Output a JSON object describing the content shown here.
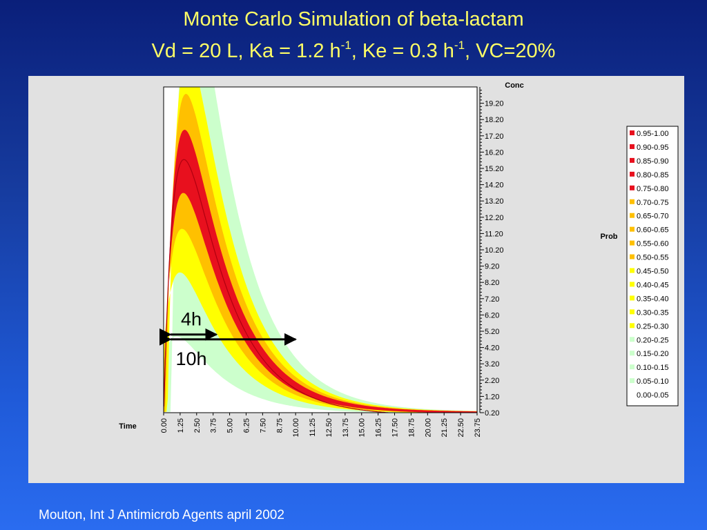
{
  "slide": {
    "title_line1": "Monte Carlo Simulation of beta-lactam",
    "title_line2": {
      "part1": "Vd = 20 L, Ka = 1.2 h",
      "sup1": "-1",
      "part2": ", Ke = 0.3 h",
      "sup2": "-1",
      "part3": ", VC=20%"
    },
    "citation": "Mouton, Int J Antimicrob Agents april 2002"
  },
  "chart_data": {
    "type": "heatmap",
    "title": "",
    "xlabel": "Time",
    "ylabel": "Conc",
    "legend_title": "Prob",
    "legend_position": "right",
    "x_ticks": [
      "0.00",
      "1.25",
      "2.50",
      "3.75",
      "5.00",
      "6.25",
      "7.50",
      "8.75",
      "10.00",
      "11.25",
      "12.50",
      "13.75",
      "15.00",
      "16.25",
      "17.50",
      "18.75",
      "20.00",
      "21.25",
      "22.50",
      "23.75"
    ],
    "y_ticks": [
      "0.20",
      "1.20",
      "2.20",
      "3.20",
      "4.20",
      "5.20",
      "6.20",
      "7.20",
      "8.20",
      "9.20",
      "10.20",
      "11.20",
      "12.20",
      "13.20",
      "14.20",
      "15.20",
      "16.20",
      "17.20",
      "18.20",
      "19.20"
    ],
    "xlim": [
      0,
      23.75
    ],
    "ylim": [
      0.2,
      20.2
    ],
    "model": {
      "Vd_L": 20,
      "Ka_per_h": 1.2,
      "Ke_per_h": 0.3,
      "VC_percent": 20
    },
    "legend": [
      {
        "label": "0.95-1.00",
        "color": "#e8101e"
      },
      {
        "label": "0.90-0.95",
        "color": "#e8101e"
      },
      {
        "label": "0.85-0.90",
        "color": "#e8101e"
      },
      {
        "label": "0.80-0.85",
        "color": "#e8101e"
      },
      {
        "label": "0.75-0.80",
        "color": "#e8101e"
      },
      {
        "label": "0.70-0.75",
        "color": "#ffc000"
      },
      {
        "label": "0.65-0.70",
        "color": "#ffc000"
      },
      {
        "label": "0.60-0.65",
        "color": "#ffc000"
      },
      {
        "label": "0.55-0.60",
        "color": "#ffc000"
      },
      {
        "label": "0.50-0.55",
        "color": "#ffc000"
      },
      {
        "label": "0.45-0.50",
        "color": "#ffff00"
      },
      {
        "label": "0.40-0.45",
        "color": "#ffff00"
      },
      {
        "label": "0.35-0.40",
        "color": "#ffff00"
      },
      {
        "label": "0.30-0.35",
        "color": "#ffff00"
      },
      {
        "label": "0.25-0.30",
        "color": "#ffff00"
      },
      {
        "label": "0.20-0.25",
        "color": "#ccffcc"
      },
      {
        "label": "0.15-0.20",
        "color": "#ccffcc"
      },
      {
        "label": "0.10-0.15",
        "color": "#ccffcc"
      },
      {
        "label": "0.05-0.10",
        "color": "#ccffcc"
      },
      {
        "label": "0.00-0.05",
        "color": "#ffffff"
      }
    ],
    "annotations": [
      {
        "text": "4h",
        "x_start": 0.0,
        "x_end": 4.0,
        "concentration": 5.0
      },
      {
        "text": "10h",
        "x_start": 0.0,
        "x_end": 10.0,
        "concentration": 4.7
      }
    ]
  }
}
